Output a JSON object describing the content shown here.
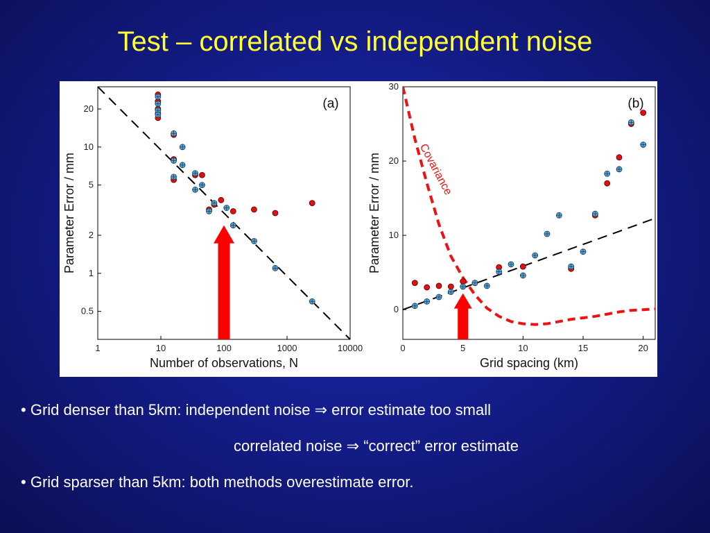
{
  "slide": {
    "title": "Test – correlated vs independent noise",
    "bullets": [
      {
        "dot": "•",
        "lead": "Grid denser than 5km: independent noise",
        "arrow": "⇒",
        "tail": "error estimate too small"
      },
      {
        "lead": "correlated noise",
        "arrow": "⇒",
        "tail": "“correct” error estimate"
      },
      {
        "dot": "•",
        "lead": "Grid sparser than 5km: both methods overestimate error."
      }
    ]
  },
  "chart_data": [
    {
      "type": "scatter",
      "panel_label": "(a)",
      "xlabel": "Number of observations, N",
      "ylabel": "Parameter Error / mm",
      "xscale": "log",
      "yscale": "log",
      "xlim": [
        1,
        10000
      ],
      "ylim": [
        0.3,
        30
      ],
      "x_ticks": [
        {
          "v": 1,
          "t": "1"
        },
        {
          "v": 10,
          "t": "10"
        },
        {
          "v": 100,
          "t": "100"
        },
        {
          "v": 1000,
          "t": "1000"
        },
        {
          "v": 10000,
          "t": "10000"
        }
      ],
      "y_ticks": [
        {
          "v": 0.5,
          "t": "0.5"
        },
        {
          "v": 1,
          "t": "1"
        },
        {
          "v": 2,
          "t": "2"
        },
        {
          "v": 5,
          "t": "5"
        },
        {
          "v": 10,
          "t": "10"
        },
        {
          "v": 20,
          "t": "20"
        }
      ],
      "series": [
        {
          "marker": "red",
          "color": "#dd1111",
          "points": [
            [
              9,
              26
            ],
            [
              9,
              23
            ],
            [
              9,
              20
            ],
            [
              9,
              18.5
            ],
            [
              9,
              17
            ],
            [
              16,
              12.5
            ],
            [
              16,
              8
            ],
            [
              16,
              5.5
            ],
            [
              35,
              6
            ],
            [
              45,
              6
            ],
            [
              58,
              3.2
            ],
            [
              70,
              3.5
            ],
            [
              90,
              3.8
            ],
            [
              140,
              3.1
            ],
            [
              300,
              3.2
            ],
            [
              650,
              3.0
            ],
            [
              2500,
              3.6
            ]
          ]
        },
        {
          "marker": "blue-crossed",
          "color": "#5aa8d8",
          "points": [
            [
              9,
              25
            ],
            [
              9,
              22
            ],
            [
              9,
              19.5
            ],
            [
              9,
              18
            ],
            [
              16,
              12.8
            ],
            [
              16,
              7.8
            ],
            [
              16,
              5.8
            ],
            [
              22,
              10
            ],
            [
              22,
              7.2
            ],
            [
              35,
              6.2
            ],
            [
              35,
              4.6
            ],
            [
              45,
              5
            ],
            [
              58,
              3.1
            ],
            [
              70,
              3.6
            ],
            [
              110,
              3.3
            ],
            [
              140,
              2.4
            ],
            [
              300,
              1.8
            ],
            [
              650,
              1.1
            ],
            [
              2500,
              0.6
            ]
          ]
        }
      ],
      "reference_line": {
        "style": "dashed",
        "color": "#000000",
        "points": [
          [
            1,
            30
          ],
          [
            10000,
            0.3
          ]
        ]
      },
      "arrow": {
        "color": "#ff0000",
        "x": 100,
        "y_from": 0.3,
        "y_to": 2.4
      }
    },
    {
      "type": "scatter",
      "panel_label": "(b)",
      "xlabel": "Grid spacing (km)",
      "ylabel": "Parameter Error / mm",
      "xlim": [
        0,
        21
      ],
      "ylim": [
        -4,
        30
      ],
      "x_ticks": [
        0,
        5,
        10,
        15,
        20
      ],
      "y_ticks": [
        0,
        10,
        20,
        30
      ],
      "series": [
        {
          "marker": "red",
          "color": "#dd1111",
          "points": [
            [
              1,
              3.6
            ],
            [
              2,
              3.0
            ],
            [
              3,
              3.2
            ],
            [
              4,
              3.1
            ],
            [
              5,
              3.8
            ],
            [
              6,
              3.6
            ],
            [
              8,
              5.7
            ],
            [
              10,
              5.8
            ],
            [
              14,
              5.5
            ],
            [
              16,
              12.7
            ],
            [
              17,
              17
            ],
            [
              18,
              20.5
            ],
            [
              19,
              25
            ],
            [
              20,
              26.5
            ]
          ]
        },
        {
          "marker": "blue-crossed",
          "color": "#5aa8d8",
          "points": [
            [
              1,
              0.5
            ],
            [
              2,
              1.1
            ],
            [
              3,
              1.7
            ],
            [
              4,
              2.4
            ],
            [
              5,
              3.1
            ],
            [
              6,
              3.6
            ],
            [
              7,
              3.2
            ],
            [
              8,
              5.1
            ],
            [
              9,
              6.1
            ],
            [
              10,
              4.6
            ],
            [
              11,
              7.3
            ],
            [
              12,
              10.2
            ],
            [
              13,
              12.7
            ],
            [
              14,
              5.8
            ],
            [
              15,
              7.8
            ],
            [
              16,
              12.9
            ],
            [
              17,
              18.3
            ],
            [
              18,
              18.9
            ],
            [
              19,
              25.2
            ],
            [
              20,
              22.2
            ]
          ]
        }
      ],
      "reference_line": {
        "style": "dashed",
        "color": "#000000",
        "points": [
          [
            0,
            0
          ],
          [
            21,
            12.3
          ]
        ]
      },
      "covariance_curve": {
        "label": "Covariance",
        "color": "#ee1111",
        "style": "dashed",
        "points": [
          [
            0,
            30
          ],
          [
            1,
            23
          ],
          [
            2,
            17
          ],
          [
            3,
            11.5
          ],
          [
            4,
            7.2
          ],
          [
            5,
            4.3
          ],
          [
            6,
            2
          ],
          [
            7,
            0.2
          ],
          [
            8,
            -0.9
          ],
          [
            9,
            -1.6
          ],
          [
            10,
            -1.9
          ],
          [
            11,
            -2
          ],
          [
            12,
            -1.9
          ],
          [
            13,
            -1.6
          ],
          [
            14,
            -1.3
          ],
          [
            15,
            -1.1
          ],
          [
            16,
            -0.9
          ],
          [
            17,
            -0.6
          ],
          [
            18,
            -0.3
          ],
          [
            19,
            -0.1
          ],
          [
            20,
            0.0
          ],
          [
            21,
            0.1
          ]
        ]
      },
      "arrow": {
        "color": "#ff0000",
        "x": 5,
        "y_from": -4,
        "y_to": 2.2
      }
    }
  ]
}
